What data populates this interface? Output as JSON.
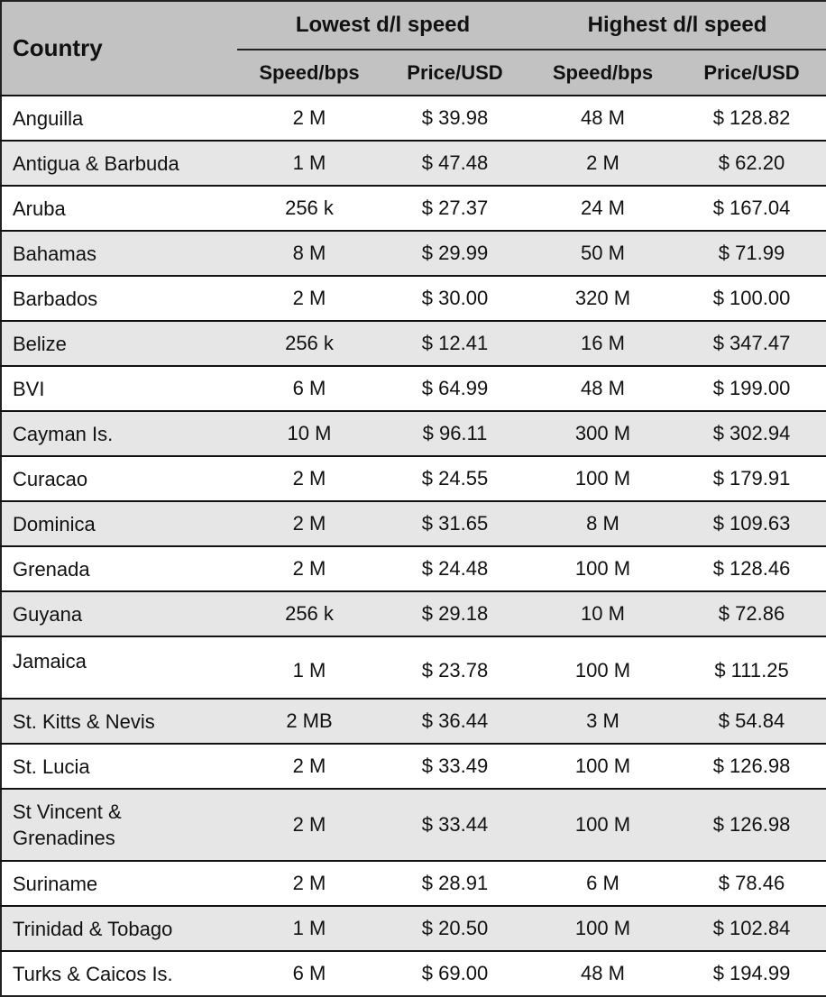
{
  "header": {
    "country": "Country",
    "lowest_group": "Lowest d/l speed",
    "highest_group": "Highest d/l speed",
    "sub": [
      "Speed/bps",
      "Price/USD",
      "Speed/bps",
      "Price/USD"
    ]
  },
  "colors": {
    "header_bg": "#c2c2c2",
    "alt_row_bg": "#e6e6e6",
    "border": "#222222"
  },
  "rows": [
    {
      "country": "Anguilla",
      "low_speed": "2 M",
      "low_price": "$ 39.98",
      "high_speed": "48 M",
      "high_price": "$ 128.82"
    },
    {
      "country": "Antigua & Barbuda",
      "low_speed": "1 M",
      "low_price": "$ 47.48",
      "high_speed": "2 M",
      "high_price": "$ 62.20"
    },
    {
      "country": "Aruba",
      "low_speed": "256 k",
      "low_price": "$ 27.37",
      "high_speed": "24 M",
      "high_price": "$ 167.04"
    },
    {
      "country": "Bahamas",
      "low_speed": "8 M",
      "low_price": "$ 29.99",
      "high_speed": "50 M",
      "high_price": "$ 71.99"
    },
    {
      "country": "Barbados",
      "low_speed": "2 M",
      "low_price": "$ 30.00",
      "high_speed": "320 M",
      "high_price": "$ 100.00"
    },
    {
      "country": "Belize",
      "low_speed": "256 k",
      "low_price": "$ 12.41",
      "high_speed": "16 M",
      "high_price": "$  347.47"
    },
    {
      "country": "BVI",
      "low_speed": "6 M",
      "low_price": "$ 64.99",
      "high_speed": "48 M",
      "high_price": "$ 199.00"
    },
    {
      "country": "Cayman Is.",
      "low_speed": "10 M",
      "low_price": "$ 96.11",
      "high_speed": "300 M",
      "high_price": "$ 302.94"
    },
    {
      "country": "Curacao",
      "low_speed": "2 M",
      "low_price": "$ 24.55",
      "high_speed": "100 M",
      "high_price": "$ 179.91"
    },
    {
      "country": "Dominica",
      "low_speed": "2 M",
      "low_price": "$ 31.65",
      "high_speed": "8 M",
      "high_price": "$ 109.63"
    },
    {
      "country": "Grenada",
      "low_speed": "2 M",
      "low_price": "$ 24.48",
      "high_speed": "100 M",
      "high_price": "$ 128.46"
    },
    {
      "country": "Guyana",
      "low_speed": "256 k",
      "low_price": "$ 29.18",
      "high_speed": "10 M",
      "high_price": "$ 72.86"
    },
    {
      "country": "Jamaica",
      "low_speed": "1 M",
      "low_price": "$ 23.78",
      "high_speed": "100 M",
      "high_price": "$ 111.25"
    },
    {
      "country": "St. Kitts & Nevis",
      "low_speed": "2 MB",
      "low_price": "$ 36.44",
      "high_speed": "3 M",
      "high_price": "$ 54.84"
    },
    {
      "country": "St. Lucia",
      "low_speed": "2 M",
      "low_price": "$ 33.49",
      "high_speed": "100 M",
      "high_price": "$ 126.98"
    },
    {
      "country": "St Vincent & Grenadines",
      "low_speed": "2 M",
      "low_price": "$ 33.44",
      "high_speed": "100 M",
      "high_price": "$ 126.98"
    },
    {
      "country": "Suriname",
      "low_speed": "2 M",
      "low_price": "$ 28.91",
      "high_speed": "6 M",
      "high_price": "$ 78.46"
    },
    {
      "country": "Trinidad & Tobago",
      "low_speed": "1 M",
      "low_price": "$ 20.50",
      "high_speed": "100 M",
      "high_price": "$ 102.84"
    },
    {
      "country": "Turks & Caicos Is.",
      "low_speed": "6 M",
      "low_price": "$ 69.00",
      "high_speed": "48 M",
      "high_price": "$ 194.99"
    }
  ]
}
